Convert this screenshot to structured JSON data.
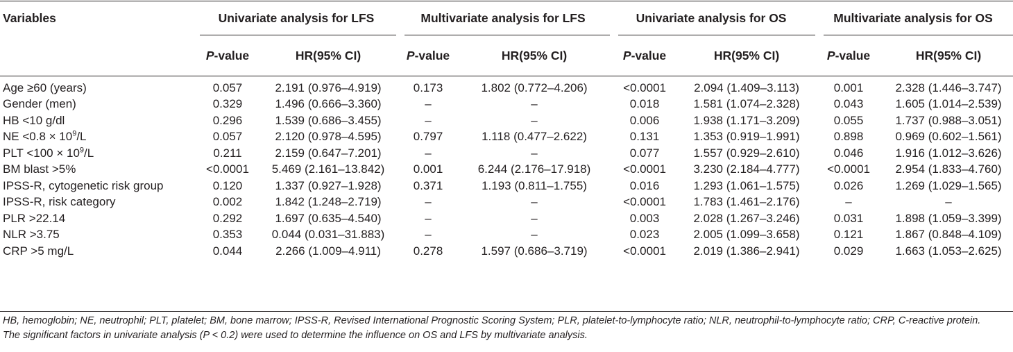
{
  "table": {
    "header_groups": {
      "variables": "Variables",
      "uni_lfs": "Univariate analysis for LFS",
      "multi_lfs": "Multivariate analysis for LFS",
      "uni_os": "Univariate analysis for OS",
      "multi_os": "Multivariate analysis for OS"
    },
    "sub_headers": {
      "p_letter": "P",
      "p_suffix": "-value",
      "hr": "HR(95% CI)"
    },
    "rows": [
      {
        "var": "Age ≥60 (years)",
        "v": [
          "0.057",
          "2.191 (0.976–4.919)",
          "0.173",
          "1.802 (0.772–4.206)",
          "<0.0001",
          "2.094 (1.409–3.113)",
          "0.001",
          "2.328 (1.446–3.747)"
        ]
      },
      {
        "var": "Gender (men)",
        "v": [
          "0.329",
          "1.496 (0.666–3.360)",
          "–",
          "–",
          "0.018",
          "1.581 (1.074–2.328)",
          "0.043",
          "1.605 (1.014–2.539)"
        ]
      },
      {
        "var": "HB <10 g/dl",
        "v": [
          "0.296",
          "1.539 (0.686–3.455)",
          "–",
          "–",
          "0.006",
          "1.938 (1.171–3.209)",
          "0.055",
          "1.737 (0.988–3.051)"
        ]
      },
      {
        "var_pre": "NE <0.8 × 10",
        "var_sup": "9",
        "var_post": "/L",
        "v": [
          "0.057",
          "2.120 (0.978–4.595)",
          "0.797",
          "1.118 (0.477–2.622)",
          "0.131",
          "1.353 (0.919–1.991)",
          "0.898",
          "0.969 (0.602–1.561)"
        ]
      },
      {
        "var_pre": "PLT <100 × 10",
        "var_sup": "9",
        "var_post": "/L",
        "v": [
          "0.211",
          "2.159 (0.647–7.201)",
          "–",
          "–",
          "0.077",
          "1.557 (0.929–2.610)",
          "0.046",
          "1.916 (1.012–3.626)"
        ]
      },
      {
        "var": "BM blast >5%",
        "v": [
          "<0.0001",
          "5.469 (2.161–13.842)",
          "0.001",
          "6.244 (2.176–17.918)",
          "<0.0001",
          "3.230 (2.184–4.777)",
          "<0.0001",
          "2.954 (1.833–4.760)"
        ]
      },
      {
        "var": "IPSS-R, cytogenetic risk group",
        "v": [
          "0.120",
          "1.337 (0.927–1.928)",
          "0.371",
          "1.193 (0.811–1.755)",
          "0.016",
          "1.293 (1.061–1.575)",
          "0.026",
          "1.269 (1.029–1.565)"
        ]
      },
      {
        "var": "IPSS-R, risk category",
        "v": [
          "0.002",
          "1.842 (1.248–2.719)",
          "–",
          "–",
          "<0.0001",
          "1.783 (1.461–2.176)",
          "–",
          "–"
        ]
      },
      {
        "var": "PLR >22.14",
        "v": [
          "0.292",
          "1.697 (0.635–4.540)",
          "–",
          "–",
          "0.003",
          "2.028 (1.267–3.246)",
          "0.031",
          "1.898 (1.059–3.399)"
        ]
      },
      {
        "var": "NLR >3.75",
        "v": [
          "0.353",
          "0.044 (0.031–31.883)",
          "–",
          "–",
          "0.023",
          "2.005 (1.099–3.658)",
          "0.121",
          "1.867 (0.848–4.109)"
        ]
      },
      {
        "var": "CRP >5 mg/L",
        "v": [
          "0.044",
          "2.266 (1.009–4.911)",
          "0.278",
          "1.597 (0.686–3.719)",
          "<0.0001",
          "2.019 (1.386–2.941)",
          "0.029",
          "1.663 (1.053–2.625)"
        ]
      }
    ]
  },
  "footnotes": {
    "abbreviations": "HB, hemoglobin; NE, neutrophil; PLT, platelet; BM, bone marrow; IPSS-R, Revised International Prognostic Scoring System; PLR, platelet-to-lymphocyte ratio; NLR, neutrophil-to-lymphocyte ratio; CRP, C-reactive protein.",
    "note": "The significant factors in univariate analysis (P < 0.2) were used to determine the influence on OS and LFS by multivariate analysis."
  }
}
